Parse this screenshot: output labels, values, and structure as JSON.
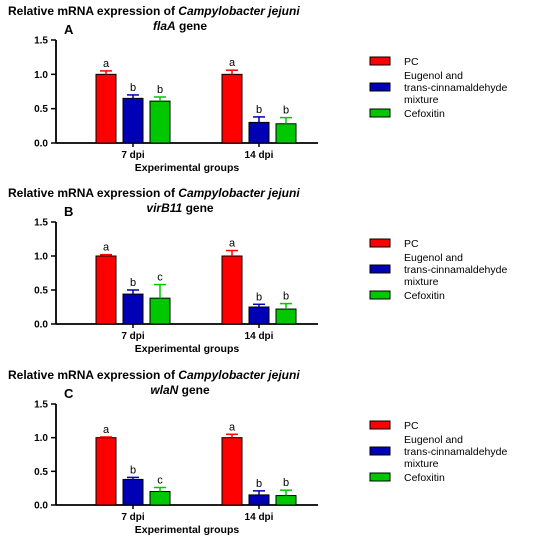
{
  "colors": {
    "PC": "#ff0000",
    "Eugenol": "#0000b4",
    "Cefoxitin": "#00c800",
    "axis": "#000000"
  },
  "chart_data": [
    {
      "type": "bar",
      "panel": "A",
      "title_prefix": "Relative mRNA expression of ",
      "title_italic": "Campylobacter jejuni",
      "title_gene": "flaA",
      "title_suffix": " gene",
      "xlabel": "Experimental groups",
      "ylim": [
        0,
        1.5
      ],
      "yticks": [
        "0.0",
        "0.5",
        "1.0",
        "1.5"
      ],
      "categories": [
        "7 dpi",
        "14 dpi"
      ],
      "series": [
        {
          "name": "PC",
          "values": [
            1.0,
            1.0
          ],
          "errors": [
            0.05,
            0.06
          ],
          "letters": [
            "a",
            "a"
          ]
        },
        {
          "name": "Eugenol and trans-cinnamaldehyde mixture",
          "values": [
            0.65,
            0.3
          ],
          "errors": [
            0.05,
            0.08
          ],
          "letters": [
            "b",
            "b"
          ]
        },
        {
          "name": "Cefoxitin",
          "values": [
            0.61,
            0.28
          ],
          "errors": [
            0.06,
            0.09
          ],
          "letters": [
            "b",
            "b"
          ]
        }
      ]
    },
    {
      "type": "bar",
      "panel": "B",
      "title_prefix": "Relative mRNA expression of ",
      "title_italic": "Campylobacter jejuni",
      "title_gene": "virB11",
      "title_suffix": " gene",
      "xlabel": "Experimental groups",
      "ylim": [
        0,
        1.5
      ],
      "yticks": [
        "0.0",
        "0.5",
        "1.0",
        "1.5"
      ],
      "categories": [
        "7 dpi",
        "14 dpi"
      ],
      "series": [
        {
          "name": "PC",
          "values": [
            1.0,
            1.0
          ],
          "errors": [
            0.02,
            0.08
          ],
          "letters": [
            "a",
            "a"
          ]
        },
        {
          "name": "Eugenol and trans-cinnamaldehyde mixture",
          "values": [
            0.44,
            0.25
          ],
          "errors": [
            0.06,
            0.04
          ],
          "letters": [
            "b",
            "b"
          ]
        },
        {
          "name": "Cefoxitin",
          "values": [
            0.38,
            0.22
          ],
          "errors": [
            0.2,
            0.08
          ],
          "letters": [
            "c",
            "b"
          ]
        }
      ]
    },
    {
      "type": "bar",
      "panel": "C",
      "title_prefix": "Relative mRNA expression of ",
      "title_italic": "Campylobacter jejuni",
      "title_gene": "wlaN",
      "title_suffix": " gene",
      "xlabel": "Experimental groups",
      "ylim": [
        0,
        1.5
      ],
      "yticks": [
        "0.0",
        "0.5",
        "1.0",
        "1.5"
      ],
      "categories": [
        "7 dpi",
        "14 dpi"
      ],
      "series": [
        {
          "name": "PC",
          "values": [
            1.0,
            1.0
          ],
          "errors": [
            0.01,
            0.05
          ],
          "letters": [
            "a",
            "a"
          ]
        },
        {
          "name": "Eugenol and trans-cinnamaldehyde mixture",
          "values": [
            0.38,
            0.15
          ],
          "errors": [
            0.03,
            0.06
          ],
          "letters": [
            "b",
            "b"
          ]
        },
        {
          "name": "Cefoxitin",
          "values": [
            0.2,
            0.14
          ],
          "errors": [
            0.06,
            0.08
          ],
          "letters": [
            "c",
            "b"
          ]
        }
      ]
    }
  ],
  "legend": {
    "entries": [
      {
        "key": "PC",
        "lines": [
          "PC"
        ]
      },
      {
        "key": "Eugenol",
        "lines": [
          "Eugenol and",
          "trans-cinnamaldehyde",
          "mixture"
        ]
      },
      {
        "key": "Cefoxitin",
        "lines": [
          "Cefoxitin"
        ]
      }
    ]
  }
}
